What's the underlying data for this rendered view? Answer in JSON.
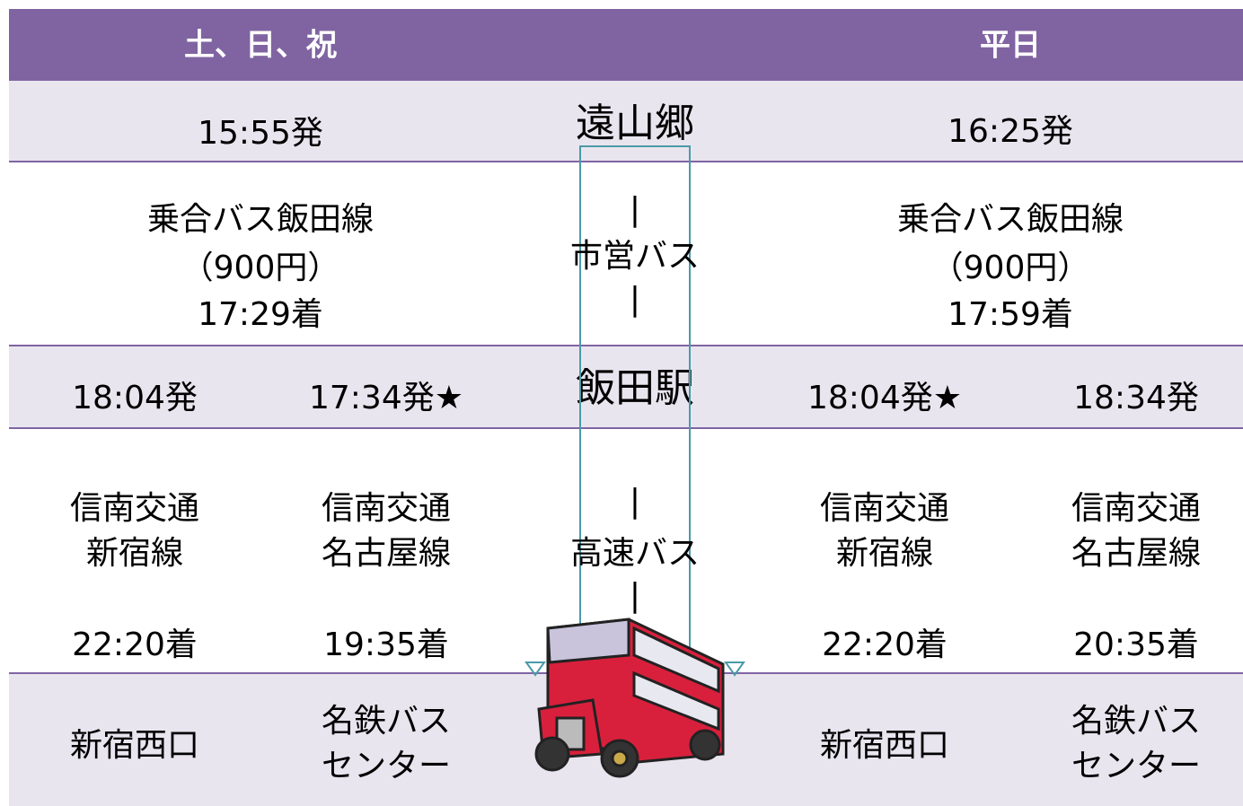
{
  "header": {
    "weekend": "土、日、祝",
    "weekday": "平日"
  },
  "origin": {
    "name": "遠山郷",
    "weekend_departure": "15:55発",
    "weekday_departure": "16:25発"
  },
  "local_bus": {
    "label": "市営バス",
    "connector_top": "|",
    "connector_bottom": "|",
    "weekend": [
      "乗合バス飯田線",
      "（900円）",
      "17:29着"
    ],
    "weekday": [
      "乗合バス飯田線",
      "（900円）",
      "17:59着"
    ]
  },
  "transfer": {
    "name": "飯田駅",
    "departures": [
      "18:04発",
      "17:34発★",
      "18:04発★",
      "18:34発"
    ]
  },
  "highway_bus": {
    "label": "高速バス",
    "connector_top": "|",
    "connector_bottom": "|",
    "routes": [
      [
        "信南交通",
        "新宿線"
      ],
      [
        "信南交通",
        "名古屋線"
      ],
      [
        "信南交通",
        "新宿線"
      ],
      [
        "信南交通",
        "名古屋線"
      ]
    ],
    "arrivals": [
      "22:20着",
      "19:35着",
      "22:20着",
      "20:35着"
    ]
  },
  "destinations": [
    [
      "新宿西口"
    ],
    [
      "名鉄バス",
      "センター"
    ],
    [
      "新宿西口"
    ],
    [
      "名鉄バス",
      "センター"
    ]
  ]
}
